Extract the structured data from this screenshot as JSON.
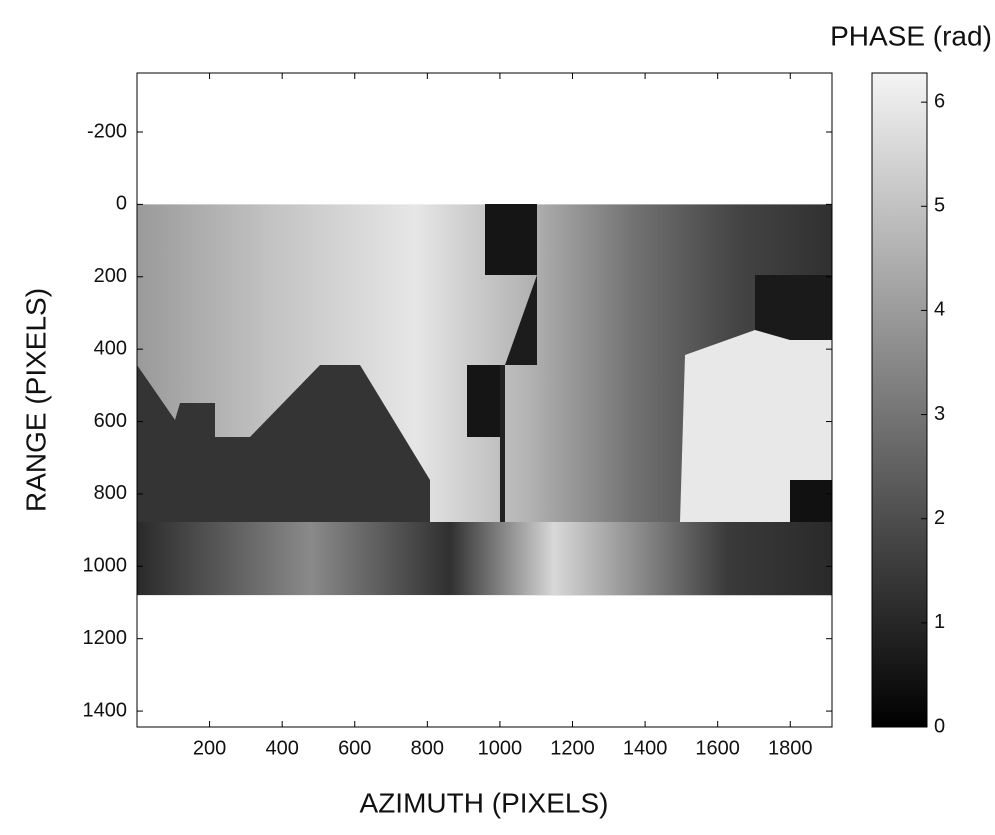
{
  "chart_data": {
    "type": "heatmap",
    "title": "PHASE (rad)",
    "xlabel": "AZIMUTH (PIXELS)",
    "ylabel": "RANGE (PIXELS)",
    "xlim": [
      0,
      1915
    ],
    "ylim": [
      -363,
      1444
    ],
    "y_inverted": true,
    "xticks": [
      200,
      400,
      600,
      800,
      1000,
      1200,
      1400,
      1600,
      1800
    ],
    "yticks": [
      -200,
      0,
      200,
      400,
      600,
      800,
      1000,
      1200,
      1400
    ],
    "image_extent": {
      "x": [
        0,
        1915
      ],
      "y": [
        0,
        1080
      ]
    },
    "colorbar": {
      "lim": [
        0,
        6.28
      ],
      "ticks": [
        0,
        1,
        2,
        3,
        4,
        5,
        6
      ],
      "colors": [
        "#000000",
        "#f4f4f4"
      ]
    }
  }
}
